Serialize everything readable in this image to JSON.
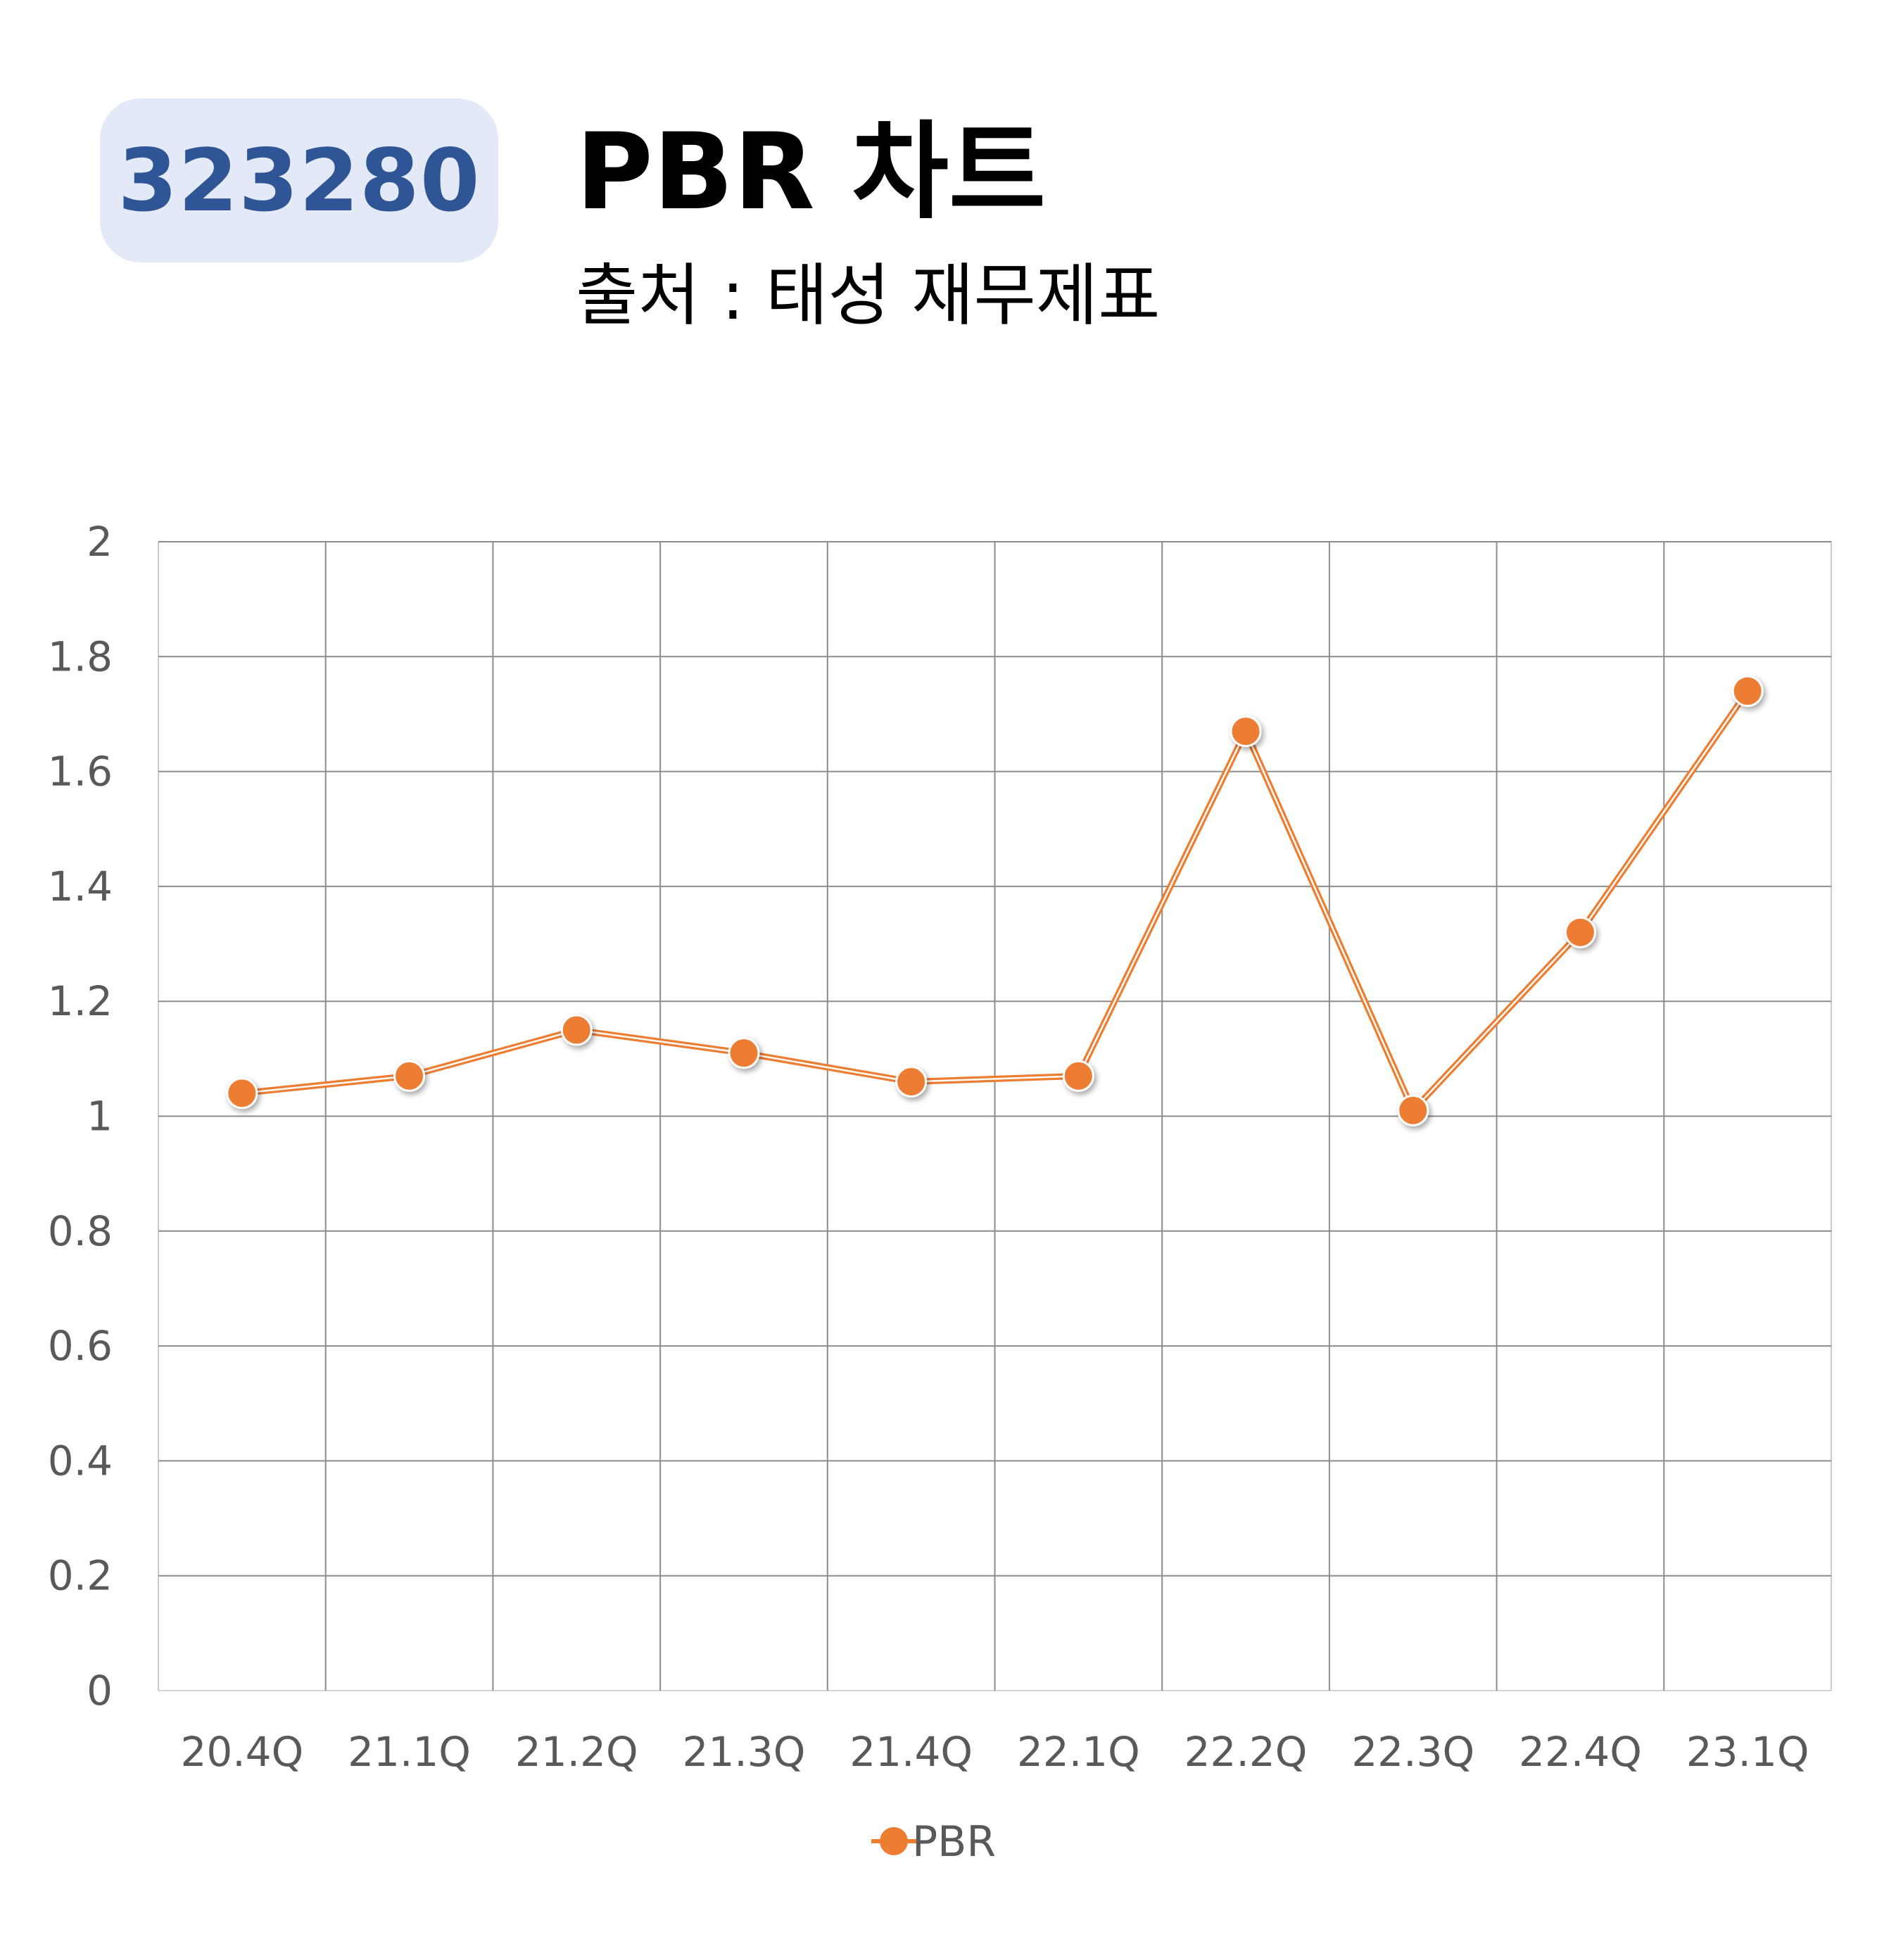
{
  "header": {
    "code": "323280",
    "title": "PBR 차트",
    "subtitle": "출처 : 태성 재무제표"
  },
  "colors": {
    "series": "#ED7D31",
    "badge_bg": "#E3E9F6",
    "badge_text": "#2F5597",
    "grid": "#8C8C8C",
    "tick_text": "#595959"
  },
  "chart_data": {
    "type": "line",
    "title": "PBR 차트",
    "categories": [
      "20.4Q",
      "21.1Q",
      "21.2Q",
      "21.3Q",
      "21.4Q",
      "22.1Q",
      "22.2Q",
      "22.3Q",
      "22.4Q",
      "23.1Q"
    ],
    "series": [
      {
        "name": "PBR",
        "values": [
          1.04,
          1.07,
          1.15,
          1.11,
          1.06,
          1.07,
          1.67,
          1.01,
          1.32,
          1.74
        ]
      }
    ],
    "ylim": [
      0,
      2
    ],
    "yticks": [
      "0",
      "0.2",
      "0.4",
      "0.6",
      "0.8",
      "1",
      "1.2",
      "1.4",
      "1.6",
      "1.8",
      "2"
    ],
    "grid": true,
    "legend_position": "bottom"
  }
}
